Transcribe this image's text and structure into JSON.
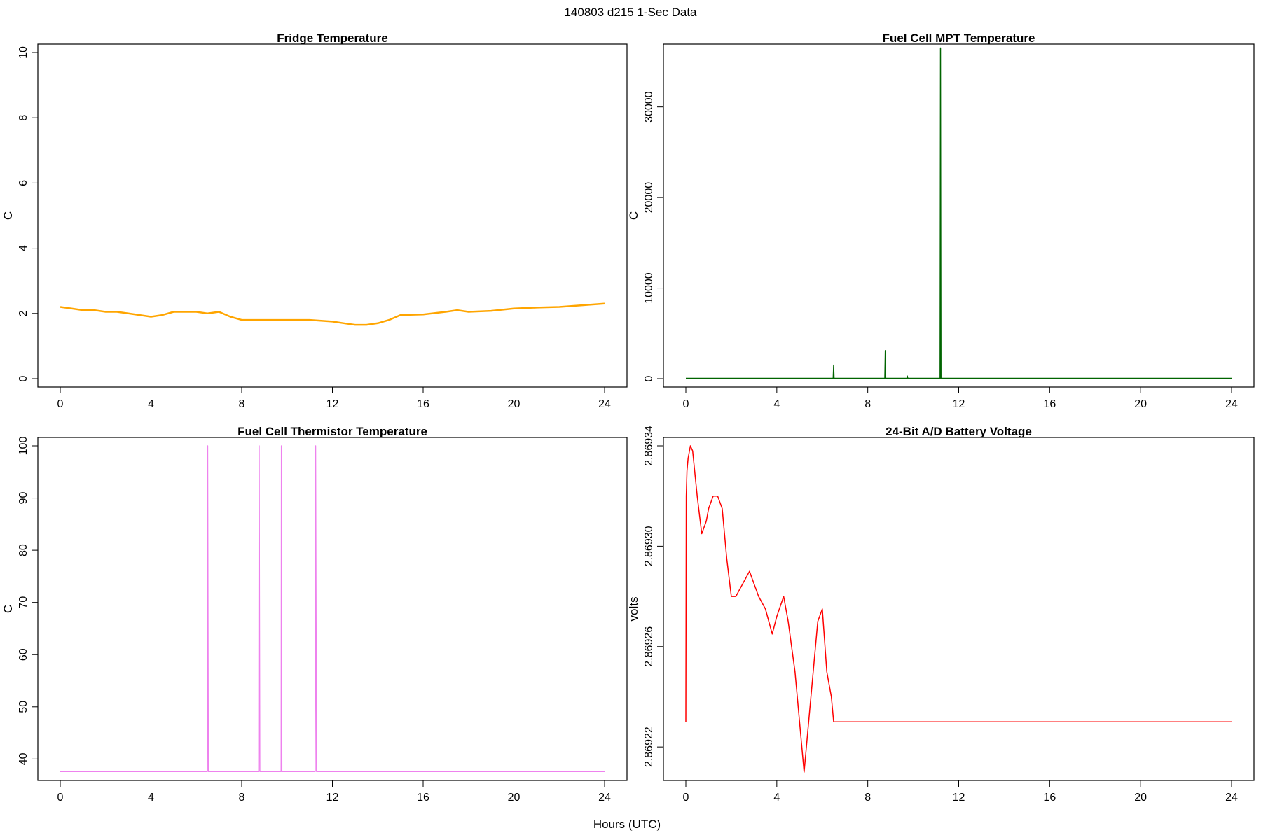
{
  "figure": {
    "suptitle": "140803   d215   1-Sec Data",
    "xlabel": "Hours (UTC)"
  },
  "chart_data": [
    {
      "type": "line",
      "title": "Fridge Temperature",
      "ylabel": "C",
      "xlabel": "",
      "color": "#FFA500",
      "xlim": [
        0,
        24
      ],
      "ylim": [
        0,
        10
      ],
      "x_ticks": [
        0,
        4,
        8,
        12,
        16,
        20,
        24
      ],
      "y_ticks": [
        0,
        2,
        4,
        6,
        8,
        10
      ],
      "y_tick_labels": [
        "0",
        "2",
        "4",
        "6",
        "8",
        "10"
      ],
      "series": [
        {
          "x": [
            0,
            0.5,
            1,
            1.5,
            2,
            2.5,
            3,
            3.5,
            4,
            4.5,
            5,
            5.5,
            6,
            6.5,
            7,
            7.5,
            8,
            9,
            10,
            11,
            12,
            12.5,
            13,
            13.5,
            14,
            14.5,
            15,
            16,
            17,
            17.5,
            18,
            19,
            20,
            21,
            22,
            23,
            24
          ],
          "y": [
            2.2,
            2.15,
            2.1,
            2.1,
            2.05,
            2.05,
            2.0,
            1.95,
            1.9,
            1.95,
            2.05,
            2.05,
            2.05,
            2.0,
            2.05,
            1.9,
            1.8,
            1.8,
            1.8,
            1.8,
            1.75,
            1.7,
            1.65,
            1.65,
            1.7,
            1.8,
            1.95,
            1.97,
            2.05,
            2.1,
            2.05,
            2.08,
            2.15,
            2.18,
            2.2,
            2.25,
            2.3
          ]
        }
      ]
    },
    {
      "type": "line",
      "title": "Fuel Cell MPT Temperature",
      "ylabel": "C",
      "xlabel": "",
      "color": "#006400",
      "xlim": [
        0,
        24
      ],
      "ylim": [
        0,
        36000
      ],
      "x_ticks": [
        0,
        4,
        8,
        12,
        16,
        20,
        24
      ],
      "y_ticks": [
        0,
        10000,
        20000,
        30000
      ],
      "y_tick_labels": [
        "0",
        "10000",
        "20000",
        "30000"
      ],
      "series": [
        {
          "x": [
            0,
            6.48,
            6.5,
            6.52,
            8.75,
            8.77,
            8.79,
            9.72,
            9.74,
            9.76,
            11.18,
            11.2,
            11.22,
            24
          ],
          "y": [
            38,
            38,
            1500,
            38,
            38,
            3100,
            38,
            38,
            300,
            38,
            38,
            36500,
            38,
            38
          ]
        }
      ]
    },
    {
      "type": "line",
      "title": "Fuel Cell Thermistor Temperature",
      "ylabel": "C",
      "xlabel": "",
      "color": "#EE82EE",
      "xlim": [
        0,
        24
      ],
      "ylim": [
        37.5,
        100
      ],
      "x_ticks": [
        0,
        4,
        8,
        12,
        16,
        20,
        24
      ],
      "y_ticks": [
        40,
        50,
        60,
        70,
        80,
        90,
        100
      ],
      "y_tick_labels": [
        "40",
        "50",
        "60",
        "70",
        "80",
        "90",
        "100"
      ],
      "series": [
        {
          "x": [
            0,
            6.48,
            6.5,
            6.53,
            8.75,
            8.77,
            8.8,
            9.74,
            9.75,
            9.77,
            11.24,
            11.26,
            11.3,
            24
          ],
          "y": [
            37.6,
            37.6,
            100,
            37.6,
            37.6,
            100,
            37.6,
            37.6,
            100,
            37.6,
            37.6,
            100,
            37.6,
            37.6
          ]
        }
      ]
    },
    {
      "type": "line",
      "title": "24-Bit A/D Battery Voltage",
      "ylabel": "volts",
      "xlabel": "",
      "color": "#FF0000",
      "xlim": [
        0,
        24
      ],
      "ylim": [
        2.86921,
        2.86934
      ],
      "x_ticks": [
        0,
        4,
        8,
        12,
        16,
        20,
        24
      ],
      "y_ticks": [
        2.86922,
        2.86926,
        2.8693,
        2.86934
      ],
      "y_tick_labels": [
        "2.86922",
        "2.86926",
        "2.86930",
        "2.86934"
      ],
      "series": [
        {
          "x": [
            0,
            0.02,
            0.05,
            0.1,
            0.2,
            0.3,
            0.5,
            0.7,
            0.9,
            1.0,
            1.2,
            1.4,
            1.6,
            1.8,
            2.0,
            2.2,
            2.5,
            2.8,
            3.0,
            3.2,
            3.5,
            3.8,
            4.0,
            4.3,
            4.5,
            4.8,
            5.0,
            5.2,
            5.4,
            5.6,
            5.8,
            6.0,
            6.2,
            6.4,
            6.5,
            24
          ],
          "y": [
            2.86923,
            2.86932,
            2.86933,
            2.869335,
            2.86934,
            2.869338,
            2.86932,
            2.869305,
            2.86931,
            2.869315,
            2.86932,
            2.86932,
            2.869315,
            2.869295,
            2.86928,
            2.86928,
            2.869285,
            2.86929,
            2.869285,
            2.86928,
            2.869275,
            2.869265,
            2.869272,
            2.86928,
            2.86927,
            2.86925,
            2.86923,
            2.86921,
            2.86923,
            2.86925,
            2.86927,
            2.869275,
            2.86925,
            2.86924,
            2.86923,
            2.86923
          ]
        }
      ]
    }
  ]
}
